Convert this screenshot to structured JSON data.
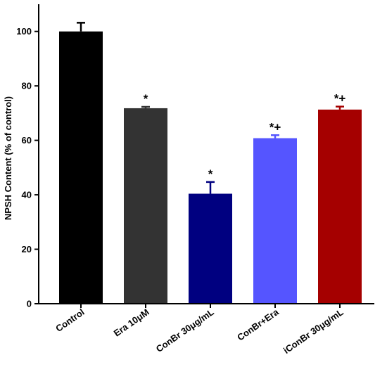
{
  "chart_data": {
    "type": "bar",
    "title": "",
    "xlabel": "",
    "ylabel": "NPSH Content (% of control)",
    "ylim": [
      0,
      110
    ],
    "yticks": [
      0,
      20,
      40,
      60,
      80,
      100
    ],
    "grid": false,
    "legend": "none",
    "categories": [
      "Control",
      "Era 10μM",
      "ConBr 30μg/mL",
      "ConBr+Era",
      "iConBr 30μg/mL"
    ],
    "values": [
      100,
      71.8,
      40.4,
      60.8,
      71.3
    ],
    "errors": [
      3.2,
      0.5,
      4.3,
      1.1,
      1.1
    ],
    "significance": [
      "",
      "*",
      "*",
      "*+",
      "*+"
    ],
    "colors": [
      "#000000",
      "#333333",
      "#000080",
      "#5555ff",
      "#a50000"
    ]
  }
}
